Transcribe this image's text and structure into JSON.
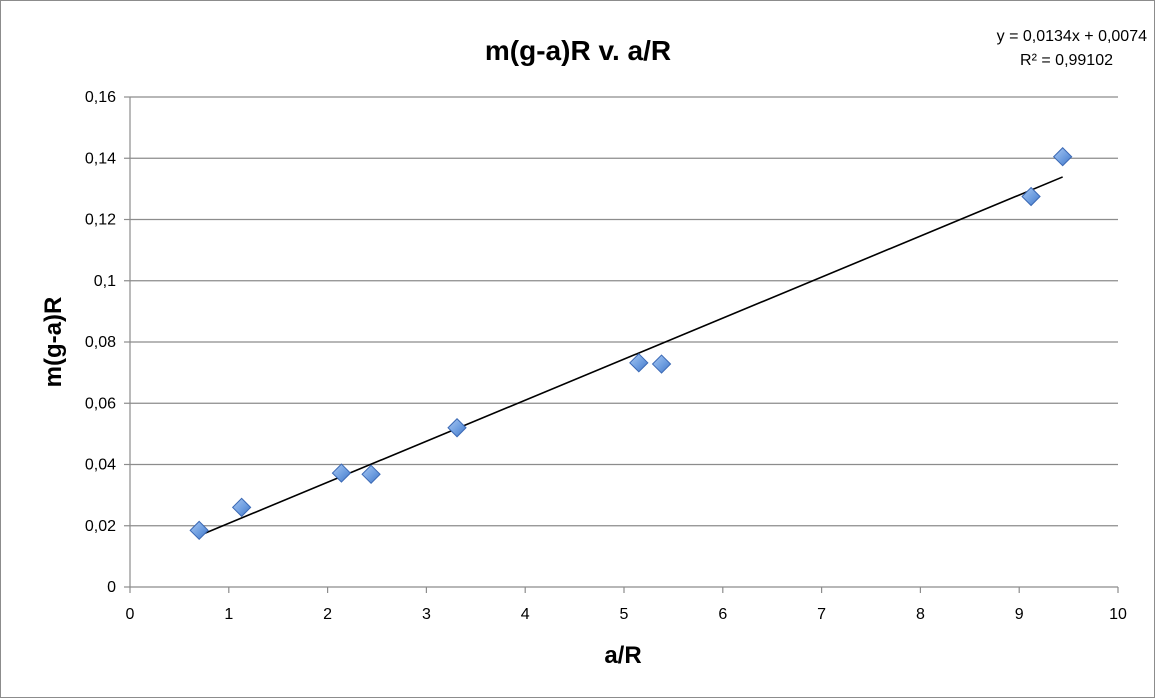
{
  "chart_data": {
    "type": "scatter",
    "title": "m(g-a)R v. a/R",
    "xlabel": "a/R",
    "ylabel": "m(g-a)R",
    "xlim": [
      0,
      10
    ],
    "ylim": [
      0,
      0.16
    ],
    "x_ticks": [
      0,
      1,
      2,
      3,
      4,
      5,
      6,
      7,
      8,
      9,
      10
    ],
    "x_tick_labels": [
      "0",
      "1",
      "2",
      "3",
      "4",
      "5",
      "6",
      "7",
      "8",
      "9",
      "10"
    ],
    "y_ticks": [
      0,
      0.02,
      0.04,
      0.06,
      0.08,
      0.1,
      0.12,
      0.14,
      0.16
    ],
    "y_tick_labels": [
      "0",
      "0,02",
      "0,04",
      "0,06",
      "0,08",
      "0,1",
      "0,12",
      "0,14",
      "0,16"
    ],
    "grid": "horizontal",
    "marker": "diamond",
    "series": [
      {
        "color": "#5b8fd6",
        "x": [
          0.7,
          1.13,
          2.14,
          2.44,
          3.31,
          5.15,
          5.38,
          9.12,
          9.44
        ],
        "y": [
          0.0185,
          0.026,
          0.0372,
          0.0368,
          0.052,
          0.0732,
          0.0728,
          0.1275,
          0.1405
        ]
      }
    ],
    "trendline": {
      "type": "linear",
      "slope": 0.0134,
      "intercept": 0.0074,
      "x_range": [
        0.7,
        9.44
      ],
      "equation": "y = 0,0134x + 0,0074",
      "r_squared": "R² = 0,99102",
      "color": "#000000"
    }
  }
}
